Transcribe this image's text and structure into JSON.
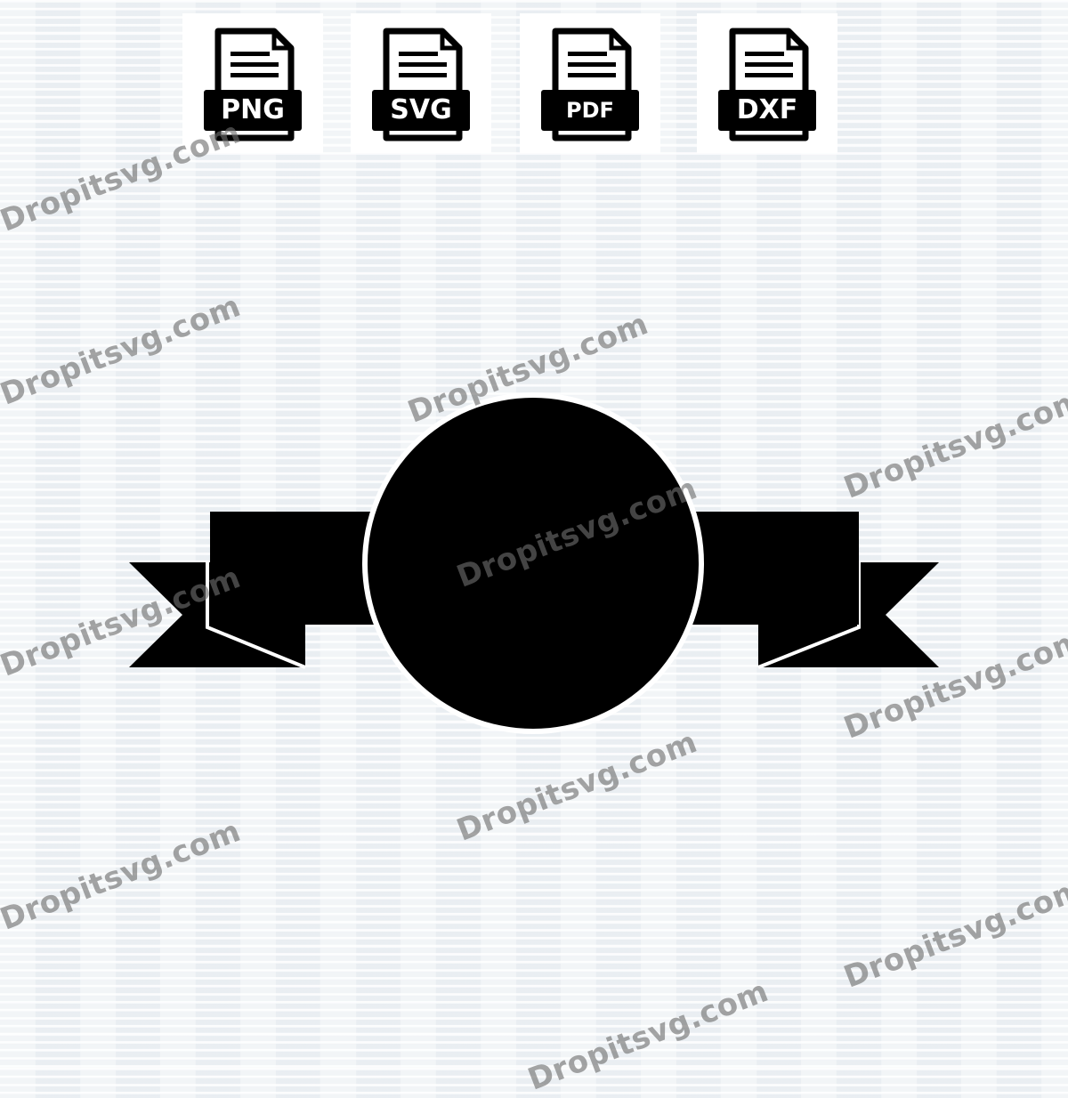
{
  "formats": [
    {
      "label": "PNG",
      "icon": "png-file-icon"
    },
    {
      "label": "SVG",
      "icon": "svg-file-icon"
    },
    {
      "label": "PDF",
      "icon": "pdf-file-icon"
    },
    {
      "label": "DXF",
      "icon": "dxf-file-icon"
    }
  ],
  "watermark_text": "Dropitsvg.com",
  "colors": {
    "shape": "#000000",
    "tile": "#ffffff",
    "watermark": "#6e6e6e"
  }
}
